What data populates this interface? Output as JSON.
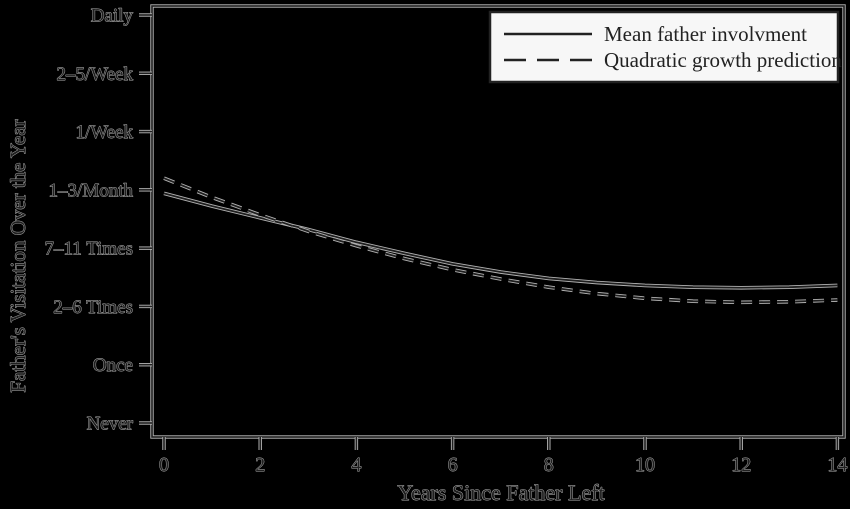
{
  "legend": {
    "position": "top-right",
    "items": [
      {
        "label": "Mean father involvment",
        "style": "solid"
      },
      {
        "label": "Quadratic growth prediction",
        "style": "dashed"
      }
    ]
  },
  "chart_data": {
    "type": "line",
    "title": "",
    "xlabel": "Years Since Father Left",
    "ylabel": "Father's Visitation Over the Year",
    "x_ticks": [
      0,
      2,
      4,
      6,
      8,
      10,
      12,
      14
    ],
    "xlim": [
      0,
      14
    ],
    "y_tick_labels": [
      "Never",
      "Once",
      "2–6 Times",
      "7–11 Times",
      "1–3/Month",
      "1/Week",
      "2–5/Week",
      "Daily"
    ],
    "y_ordinal_range": [
      0,
      7
    ],
    "grid": false,
    "legend_position": "top-right",
    "x": [
      0,
      1,
      2,
      3,
      4,
      5,
      6,
      7,
      8,
      9,
      10,
      11,
      12,
      13,
      14
    ],
    "series": [
      {
        "name": "Mean father involvment",
        "style": "solid",
        "values": [
          3.94,
          3.72,
          3.52,
          3.32,
          3.1,
          2.91,
          2.73,
          2.59,
          2.48,
          2.41,
          2.36,
          2.33,
          2.32,
          2.33,
          2.36
        ]
      },
      {
        "name": "Quadratic growth prediction",
        "style": "dashed",
        "values": [
          4.2,
          3.87,
          3.57,
          3.29,
          3.04,
          2.82,
          2.63,
          2.47,
          2.33,
          2.22,
          2.14,
          2.09,
          2.07,
          2.08,
          2.11
        ]
      }
    ],
    "colors": {
      "background": "#000000",
      "ink": "#1f1f1f",
      "halo": "#b2b2b2",
      "legend_bg": "#f7f7f7",
      "legend_ink": "#222222"
    }
  }
}
